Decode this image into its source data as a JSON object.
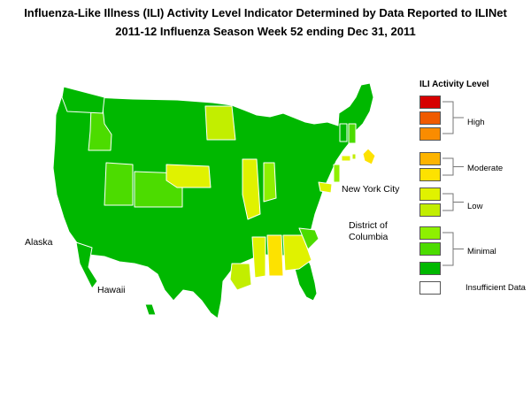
{
  "title_line1": "Influenza-Like Illness (ILI) Activity Level Indicator Determined by Data Reported to ILINet",
  "title_line2": "2011-12  Influenza Season Week  52 ending Dec 31, 2011",
  "labels": {
    "alaska": "Alaska",
    "hawaii": "Hawaii",
    "nyc": "New York City",
    "dc_line1": "District of",
    "dc_line2": "Columbia"
  },
  "legend": {
    "title": "ILI Activity Level",
    "groups": [
      {
        "label": "High"
      },
      {
        "label": "Moderate"
      },
      {
        "label": "Low"
      },
      {
        "label": "Minimal"
      },
      {
        "label": "Insufficient Data"
      }
    ],
    "level_colors": [
      "#d60000",
      "#f05a00",
      "#fa8c00",
      "#fdb400",
      "#fde200",
      "#e0f200",
      "#c2ee00",
      "#8ef000",
      "#4cdc00",
      "#00b800",
      "#ffffff"
    ]
  }
}
